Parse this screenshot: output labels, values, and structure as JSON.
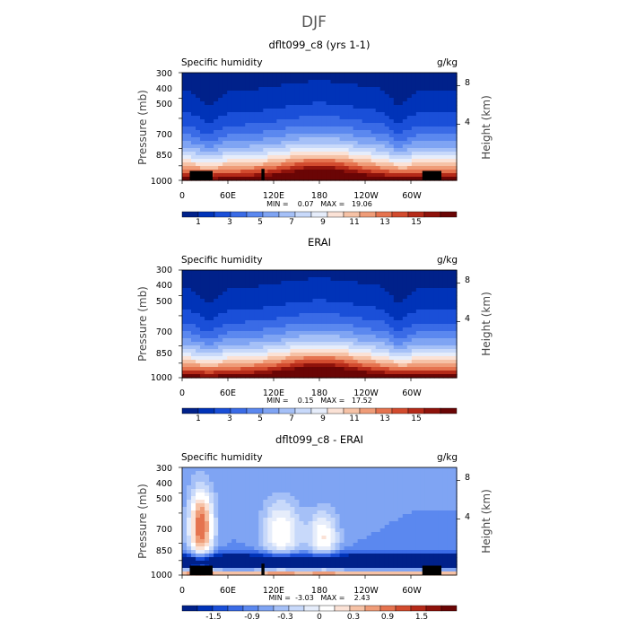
{
  "figure": {
    "title": "DJF"
  },
  "chart_data": [
    {
      "type": "heatmap",
      "title": "dflt099_c8 (yrs 1-1)",
      "left_label": "Specific humidity",
      "right_label": "g/kg",
      "ylabel": "Pressure (mb)",
      "ylabel_right": "Height (km)",
      "y_ticks": [
        "300",
        "400",
        "500",
        "700",
        "850",
        "1000"
      ],
      "y_ticks_right": [
        "8",
        "4"
      ],
      "x_ticks": [
        "0",
        "60E",
        "120E",
        "180",
        "120W",
        "60W"
      ],
      "stats": "MIN =    0.07   MAX =   19.06",
      "min": 0.07,
      "max": 19.06,
      "colorbar_labels": [
        "1",
        "3",
        "5",
        "7",
        "9",
        "11",
        "13",
        "15"
      ],
      "colorbar_colors": [
        "#00218a",
        "#0033b8",
        "#1a4fd8",
        "#3a6be6",
        "#5b88ef",
        "#7fa4f3",
        "#a5c0f7",
        "#c8d9fa",
        "#e6edfb",
        "#fbe2d6",
        "#f6c2a6",
        "#ef9c78",
        "#e5734f",
        "#d24b2e",
        "#b52a19",
        "#8e120b",
        "#6a0505"
      ],
      "surface_blocks": [
        [
          10,
          40,
          900
        ],
        [
          104,
          108,
          880
        ],
        [
          315,
          340,
          900
        ]
      ]
    },
    {
      "type": "heatmap",
      "title": "ERAI",
      "left_label": "Specific humidity",
      "right_label": "g/kg",
      "ylabel": "Pressure (mb)",
      "ylabel_right": "Height (km)",
      "y_ticks": [
        "300",
        "400",
        "500",
        "700",
        "850",
        "1000"
      ],
      "y_ticks_right": [
        "8",
        "4"
      ],
      "x_ticks": [
        "0",
        "60E",
        "120E",
        "180",
        "120W",
        "60W"
      ],
      "stats": "MIN =    0.15   MAX =   17.52",
      "min": 0.15,
      "max": 17.52,
      "colorbar_labels": [
        "1",
        "3",
        "5",
        "7",
        "9",
        "11",
        "13",
        "15"
      ],
      "colorbar_colors": [
        "#00218a",
        "#0033b8",
        "#1a4fd8",
        "#3a6be6",
        "#5b88ef",
        "#7fa4f3",
        "#a5c0f7",
        "#c8d9fa",
        "#e6edfb",
        "#fbe2d6",
        "#f6c2a6",
        "#ef9c78",
        "#e5734f",
        "#d24b2e",
        "#b52a19",
        "#8e120b",
        "#6a0505"
      ],
      "surface_blocks": []
    },
    {
      "type": "heatmap",
      "title": "dflt099_c8 - ERAI",
      "left_label": "Specific humidity",
      "right_label": "g/kg",
      "ylabel": "Pressure (mb)",
      "ylabel_right": "Height (km)",
      "y_ticks": [
        "300",
        "400",
        "500",
        "700",
        "850",
        "1000"
      ],
      "y_ticks_right": [
        "8",
        "4"
      ],
      "x_ticks": [
        "0",
        "60E",
        "120E",
        "180",
        "120W",
        "60W"
      ],
      "stats": "MIN =  -3.03   MAX =    2.43",
      "min": -3.03,
      "max": 2.43,
      "colorbar_labels": [
        "-1.5",
        "-0.9",
        "-0.3",
        "0",
        "0.3",
        "0.9",
        "1.5"
      ],
      "colorbar_colors": [
        "#00218a",
        "#0033b8",
        "#1a4fd8",
        "#3a6be6",
        "#5b88ef",
        "#7fa4f3",
        "#a5c0f7",
        "#c8d9fa",
        "#e6edfb",
        "#ffffff",
        "#fbe2d6",
        "#f6c2a6",
        "#ef9c78",
        "#e5734f",
        "#d24b2e",
        "#b52a19",
        "#8e120b",
        "#6a0505"
      ],
      "surface_blocks": [
        [
          10,
          40,
          900
        ],
        [
          104,
          108,
          880
        ],
        [
          315,
          340,
          900
        ]
      ]
    }
  ]
}
